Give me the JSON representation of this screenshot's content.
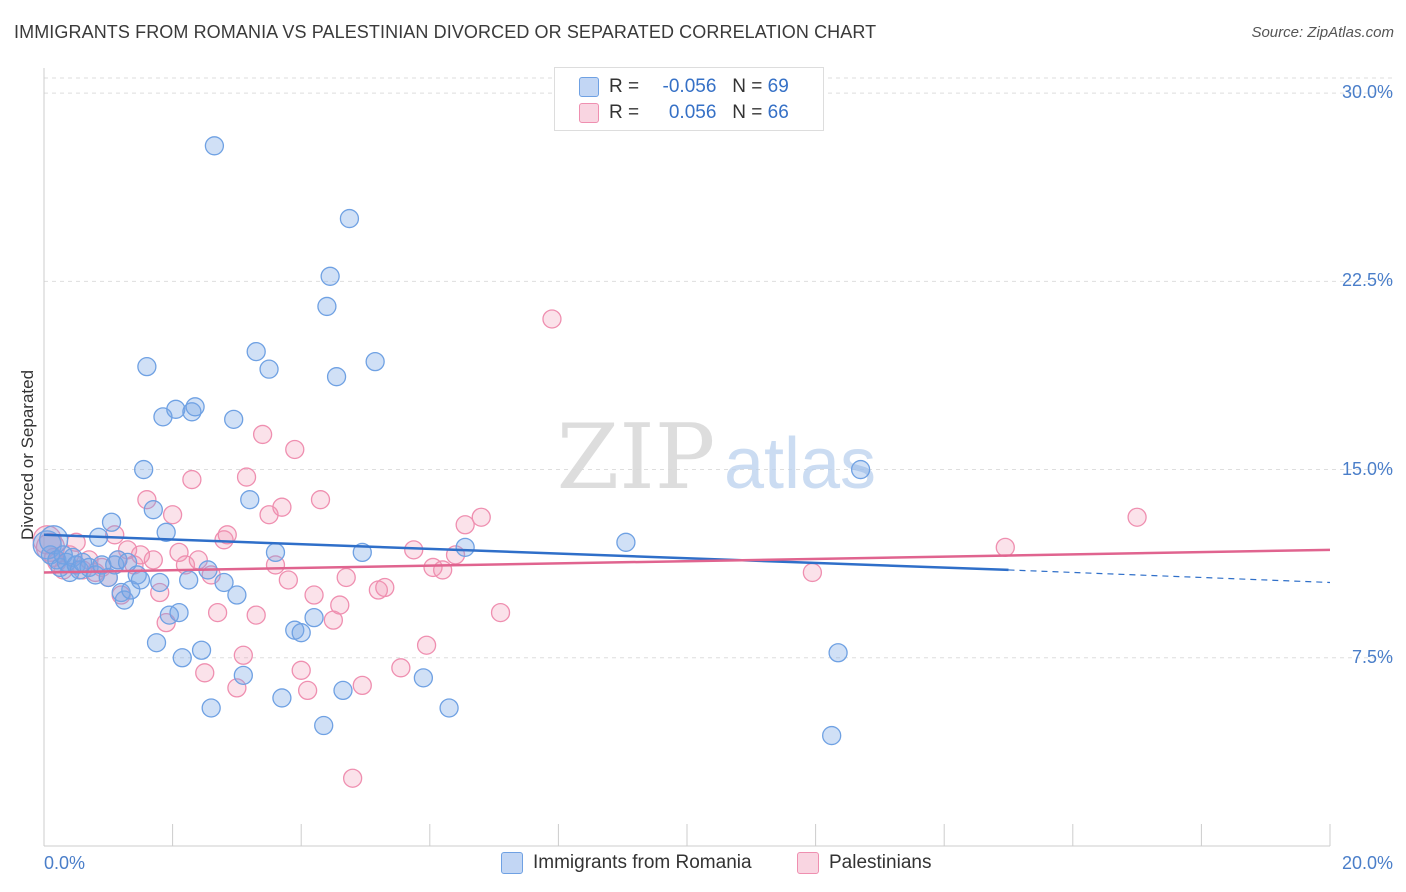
{
  "header": {
    "title": "IMMIGRANTS FROM ROMANIA VS PALESTINIAN DIVORCED OR SEPARATED CORRELATION CHART",
    "source": "Source: ZipAtlas.com"
  },
  "watermark": {
    "zip": "ZIP",
    "atlas": "atlas"
  },
  "legend_top": {
    "rows": [
      {
        "r_label": "R =",
        "r_value": "-0.056",
        "n_label": "N =",
        "n_value": "69"
      },
      {
        "r_label": "R =",
        "r_value": "0.056",
        "n_label": "N =",
        "n_value": "66"
      }
    ]
  },
  "legend_bottom": [
    "Immigrants from Romania",
    "Palestinians"
  ],
  "colors": {
    "blue": "#6fa1e3",
    "blue_fill": "rgba(120,165,230,0.35)",
    "blue_line": "#2f6fc9",
    "pink": "#ef8fb0",
    "pink_fill": "rgba(240,150,180,0.28)",
    "pink_line": "#e0648f",
    "grid": "#dedede",
    "tick_text": "#4a7ec9"
  },
  "chart_data": {
    "type": "scatter",
    "title": "IMMIGRANTS FROM ROMANIA VS PALESTINIAN DIVORCED OR SEPARATED CORRELATION CHART",
    "xlabel": "",
    "ylabel": "Divorced or Separated",
    "xlim": [
      0,
      20
    ],
    "ylim": [
      0,
      31
    ],
    "x_ticks": [
      "0.0%",
      "20.0%"
    ],
    "y_ticks": [
      {
        "value": 7.5,
        "label": "7.5%"
      },
      {
        "value": 15,
        "label": "15.0%"
      },
      {
        "value": 22.5,
        "label": "22.5%"
      },
      {
        "value": 30,
        "label": "30.0%"
      }
    ],
    "grid": true,
    "legend_position": "bottom",
    "series": [
      {
        "name": "Immigrants from Romania",
        "color": "#6fa1e3",
        "r": -0.056,
        "n": 69,
        "trend": {
          "x0": 0,
          "y0": 12.4,
          "x1": 15.0,
          "y1": 11.0,
          "dash_x1": 20.0,
          "dash_y1": 10.5
        },
        "points": [
          [
            0.05,
            12.0
          ],
          [
            0.1,
            11.6
          ],
          [
            0.15,
            12.2
          ],
          [
            0.2,
            11.4
          ],
          [
            0.25,
            11.1
          ],
          [
            0.3,
            11.6
          ],
          [
            0.35,
            11.3
          ],
          [
            0.4,
            10.9
          ],
          [
            0.45,
            11.5
          ],
          [
            0.5,
            11.2
          ],
          [
            0.55,
            11.0
          ],
          [
            0.6,
            11.3
          ],
          [
            0.7,
            11.1
          ],
          [
            0.8,
            10.8
          ],
          [
            0.85,
            12.3
          ],
          [
            0.9,
            11.2
          ],
          [
            1.0,
            10.7
          ],
          [
            1.05,
            12.9
          ],
          [
            1.1,
            11.2
          ],
          [
            1.15,
            11.4
          ],
          [
            1.2,
            10.1
          ],
          [
            1.25,
            9.8
          ],
          [
            1.3,
            11.3
          ],
          [
            1.35,
            10.2
          ],
          [
            1.45,
            10.8
          ],
          [
            1.5,
            10.6
          ],
          [
            1.55,
            15.0
          ],
          [
            1.6,
            19.1
          ],
          [
            1.7,
            13.4
          ],
          [
            1.75,
            8.1
          ],
          [
            1.8,
            10.5
          ],
          [
            1.85,
            17.1
          ],
          [
            1.9,
            12.5
          ],
          [
            1.95,
            9.2
          ],
          [
            2.05,
            17.4
          ],
          [
            2.1,
            9.3
          ],
          [
            2.15,
            7.5
          ],
          [
            2.25,
            10.6
          ],
          [
            2.3,
            17.3
          ],
          [
            2.35,
            17.5
          ],
          [
            2.45,
            7.8
          ],
          [
            2.55,
            11.0
          ],
          [
            2.6,
            5.5
          ],
          [
            2.65,
            27.9
          ],
          [
            2.8,
            10.5
          ],
          [
            2.95,
            17.0
          ],
          [
            3.0,
            10.0
          ],
          [
            3.1,
            6.8
          ],
          [
            3.2,
            13.8
          ],
          [
            3.3,
            19.7
          ],
          [
            3.5,
            19.0
          ],
          [
            3.6,
            11.7
          ],
          [
            3.7,
            5.9
          ],
          [
            3.9,
            8.6
          ],
          [
            4.0,
            8.5
          ],
          [
            4.2,
            9.1
          ],
          [
            4.35,
            4.8
          ],
          [
            4.4,
            21.5
          ],
          [
            4.45,
            22.7
          ],
          [
            4.55,
            18.7
          ],
          [
            4.65,
            6.2
          ],
          [
            4.75,
            25.0
          ],
          [
            4.95,
            11.7
          ],
          [
            5.15,
            19.3
          ],
          [
            5.9,
            6.7
          ],
          [
            6.3,
            5.5
          ],
          [
            6.55,
            11.9
          ],
          [
            9.05,
            12.1
          ],
          [
            12.35,
            7.7
          ],
          [
            12.7,
            15.0
          ],
          [
            12.25,
            4.4
          ]
        ]
      },
      {
        "name": "Palestinians",
        "color": "#ef8fb0",
        "r": 0.056,
        "n": 66,
        "trend": {
          "x0": 0,
          "y0": 10.9,
          "x1": 20.0,
          "y1": 11.8
        },
        "points": [
          [
            0.05,
            12.2
          ],
          [
            0.1,
            11.9
          ],
          [
            0.15,
            11.5
          ],
          [
            0.2,
            11.3
          ],
          [
            0.3,
            11.0
          ],
          [
            0.4,
            11.6
          ],
          [
            0.5,
            12.1
          ],
          [
            0.6,
            11.0
          ],
          [
            0.7,
            11.4
          ],
          [
            0.8,
            10.9
          ],
          [
            0.9,
            11.1
          ],
          [
            1.0,
            10.7
          ],
          [
            1.1,
            12.4
          ],
          [
            1.15,
            11.4
          ],
          [
            1.2,
            10.0
          ],
          [
            1.3,
            11.8
          ],
          [
            1.4,
            11.2
          ],
          [
            1.5,
            11.6
          ],
          [
            1.6,
            13.8
          ],
          [
            1.7,
            11.4
          ],
          [
            1.8,
            10.1
          ],
          [
            1.9,
            8.9
          ],
          [
            2.0,
            13.2
          ],
          [
            2.1,
            11.7
          ],
          [
            2.2,
            11.2
          ],
          [
            2.3,
            14.6
          ],
          [
            2.4,
            11.4
          ],
          [
            2.5,
            6.9
          ],
          [
            2.6,
            10.8
          ],
          [
            2.7,
            9.3
          ],
          [
            2.8,
            12.2
          ],
          [
            2.85,
            12.4
          ],
          [
            3.0,
            6.3
          ],
          [
            3.1,
            7.6
          ],
          [
            3.15,
            14.7
          ],
          [
            3.3,
            9.2
          ],
          [
            3.4,
            16.4
          ],
          [
            3.5,
            13.2
          ],
          [
            3.6,
            11.2
          ],
          [
            3.7,
            13.5
          ],
          [
            3.8,
            10.6
          ],
          [
            3.9,
            15.8
          ],
          [
            4.0,
            7.0
          ],
          [
            4.1,
            6.2
          ],
          [
            4.2,
            10.0
          ],
          [
            4.3,
            13.8
          ],
          [
            4.5,
            9.0
          ],
          [
            4.6,
            9.6
          ],
          [
            4.7,
            10.7
          ],
          [
            4.8,
            2.7
          ],
          [
            4.95,
            6.4
          ],
          [
            5.2,
            10.2
          ],
          [
            5.3,
            10.3
          ],
          [
            5.55,
            7.1
          ],
          [
            5.75,
            11.8
          ],
          [
            5.95,
            8.0
          ],
          [
            6.05,
            11.1
          ],
          [
            6.2,
            11.0
          ],
          [
            6.4,
            11.6
          ],
          [
            6.55,
            12.8
          ],
          [
            6.8,
            13.1
          ],
          [
            7.1,
            9.3
          ],
          [
            7.9,
            21.0
          ],
          [
            11.95,
            10.9
          ],
          [
            14.95,
            11.9
          ],
          [
            17.0,
            13.1
          ]
        ]
      }
    ]
  }
}
